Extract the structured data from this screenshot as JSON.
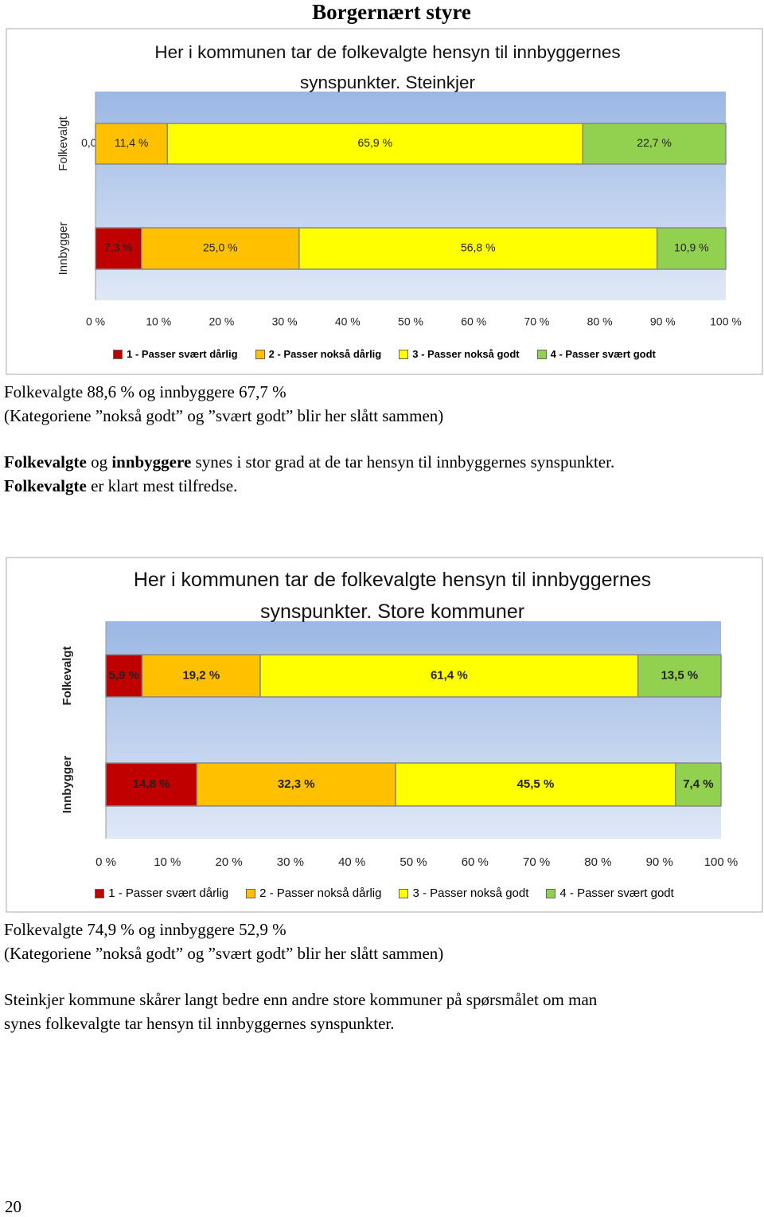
{
  "header": {
    "title": "Borgernært styre"
  },
  "chart_data": [
    {
      "type": "stacked_bar",
      "orientation": "horizontal",
      "title": "Her i kommunen tar de folkevalgte hensyn til innbyggernes synspunkter. Steinkjer",
      "categories": [
        "Folkevalgt",
        "Innbygger"
      ],
      "series": [
        {
          "name": "1 - Passer svært dårlig",
          "color": "#c00000",
          "values": [
            0.0,
            7.3
          ],
          "value_labels": [
            "0,0 %",
            "7,3 %"
          ]
        },
        {
          "name": "2 - Passer nokså dårlig",
          "color": "#ffc000",
          "values": [
            11.4,
            25.0
          ],
          "value_labels": [
            "11,4 %",
            "25,0 %"
          ]
        },
        {
          "name": "3 - Passer nokså godt",
          "color": "#ffff00",
          "values": [
            65.9,
            56.8
          ],
          "value_labels": [
            "65,9 %",
            "56,8 %"
          ]
        },
        {
          "name": "4 - Passer svært godt",
          "color": "#92d050",
          "values": [
            22.7,
            10.9
          ],
          "value_labels": [
            "22,7 %",
            "10,9 %"
          ]
        }
      ],
      "xlim": [
        0,
        100
      ],
      "xticks": [
        {
          "value": 0,
          "label": "0 %"
        },
        {
          "value": 10,
          "label": "10 %"
        },
        {
          "value": 20,
          "label": "20 %"
        },
        {
          "value": 30,
          "label": "30 %"
        },
        {
          "value": 40,
          "label": "40 %"
        },
        {
          "value": 50,
          "label": "50 %"
        },
        {
          "value": 60,
          "label": "60 %"
        },
        {
          "value": 70,
          "label": "70 %"
        },
        {
          "value": 80,
          "label": "80 %"
        },
        {
          "value": 90,
          "label": "90 %"
        },
        {
          "value": 100,
          "label": "100 %"
        }
      ],
      "legend": "bottom"
    },
    {
      "type": "stacked_bar",
      "orientation": "horizontal",
      "title": "Her i kommunen tar de folkevalgte hensyn til innbyggernes synspunkter. Store kommuner",
      "categories": [
        "Folkevalgt",
        "Innbygger"
      ],
      "series": [
        {
          "name": "1 - Passer svært dårlig",
          "color": "#c00000",
          "values": [
            5.9,
            14.8
          ],
          "value_labels": [
            "5,9 %",
            "14,8 %"
          ]
        },
        {
          "name": "2 - Passer nokså dårlig",
          "color": "#ffc000",
          "values": [
            19.2,
            32.3
          ],
          "value_labels": [
            "19,2 %",
            "32,3 %"
          ]
        },
        {
          "name": "3 - Passer nokså godt",
          "color": "#ffff00",
          "values": [
            61.4,
            45.5
          ],
          "value_labels": [
            "61,4 %",
            "45,5 %"
          ]
        },
        {
          "name": "4 - Passer svært godt",
          "color": "#92d050",
          "values": [
            13.5,
            7.4
          ],
          "value_labels": [
            "13,5 %",
            "7,4 %"
          ]
        }
      ],
      "xlim": [
        0,
        100
      ],
      "xticks": [
        {
          "value": 0,
          "label": "0 %"
        },
        {
          "value": 10,
          "label": "10 %"
        },
        {
          "value": 20,
          "label": "20 %"
        },
        {
          "value": 30,
          "label": "30 %"
        },
        {
          "value": 40,
          "label": "40 %"
        },
        {
          "value": 50,
          "label": "50 %"
        },
        {
          "value": 60,
          "label": "60 %"
        },
        {
          "value": 70,
          "label": "70 %"
        },
        {
          "value": 80,
          "label": "80 %"
        },
        {
          "value": 90,
          "label": "90 %"
        },
        {
          "value": 100,
          "label": "100 %"
        }
      ],
      "legend": "bottom"
    }
  ],
  "text_blocks": [
    {
      "lines": [
        [
          {
            "text": "Folkevalgte 88,6 % og innbyggere 67,7 %"
          }
        ],
        [
          {
            "text": "(Kategoriene ”nokså godt” og ”svært godt” blir her slått sammen)"
          }
        ]
      ]
    },
    {
      "lines": [
        [
          {
            "text": "Folkevalgte",
            "bold": true
          },
          {
            "text": " og "
          },
          {
            "text": "innbyggere",
            "bold": true
          },
          {
            "text": " synes i stor grad at de tar hensyn til innbyggernes synspunkter."
          }
        ],
        [
          {
            "text": "Folkevalgte",
            "bold": true
          },
          {
            "text": " er klart mest tilfredse."
          }
        ]
      ]
    },
    {
      "lines": [
        [
          {
            "text": "Folkevalgte 74,9 % og innbyggere 52,9 %"
          }
        ],
        [
          {
            "text": "(Kategoriene ”nokså godt” og ”svært godt” blir her slått sammen)"
          }
        ]
      ]
    },
    {
      "lines": [
        [
          {
            "text": "Steinkjer kommune skårer langt bedre enn andre store kommuner på spørsmålet om man"
          }
        ],
        [
          {
            "text": "synes folkevalgte tar hensyn til innbyggernes synspunkter."
          }
        ]
      ]
    }
  ],
  "page_number": "20"
}
